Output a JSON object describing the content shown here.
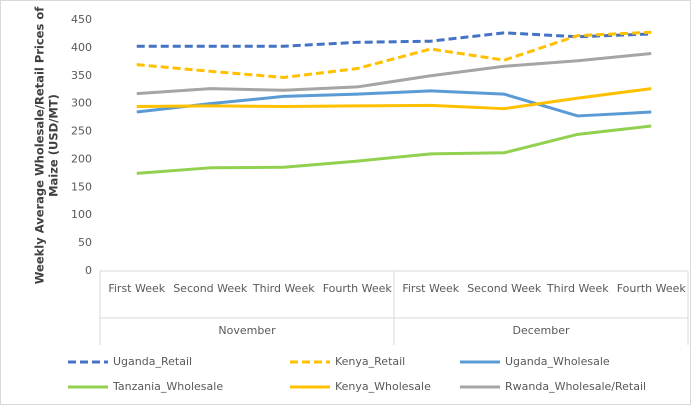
{
  "chart_data": {
    "type": "line",
    "y_label": [
      "Weekly Average Wholesale/Retail Prices of",
      "Maize (USD/MT)"
    ],
    "categories": [
      "First Week",
      "Second Week",
      "Third Week",
      "Fourth Week",
      "First Week",
      "Second Week",
      "Third Week",
      "Fourth Week"
    ],
    "groups": [
      "November",
      "December"
    ],
    "ylim": [
      0,
      450
    ],
    "yticks": [
      0,
      50,
      100,
      150,
      200,
      250,
      300,
      350,
      400,
      450
    ],
    "grid": false,
    "legend": "bottom",
    "series": [
      {
        "name": "Uganda_Retail",
        "color": "#4472c4",
        "dashed": true,
        "values": [
          403,
          403,
          403,
          410,
          412,
          427,
          420,
          425
        ]
      },
      {
        "name": "Kenya_Retail",
        "color": "#ffc000",
        "dashed": true,
        "values": [
          370,
          358,
          347,
          363,
          398,
          378,
          422,
          428
        ]
      },
      {
        "name": "Uganda_Wholesale",
        "color": "#5b9bd5",
        "dashed": false,
        "values": [
          285,
          300,
          313,
          317,
          323,
          317,
          278,
          285
        ]
      },
      {
        "name": "Tanzania_Wholesale",
        "color": "#92d050",
        "dashed": false,
        "values": [
          175,
          185,
          186,
          197,
          210,
          212,
          245,
          260
        ]
      },
      {
        "name": "Kenya_Wholesale",
        "color": "#ffc000",
        "dashed": false,
        "values": [
          295,
          296,
          295,
          296,
          297,
          291,
          310,
          327
        ]
      },
      {
        "name": "Rwanda_Wholesale/Retail",
        "color": "#a5a5a5",
        "dashed": false,
        "values": [
          318,
          327,
          324,
          330,
          350,
          367,
          377,
          390
        ]
      }
    ]
  }
}
